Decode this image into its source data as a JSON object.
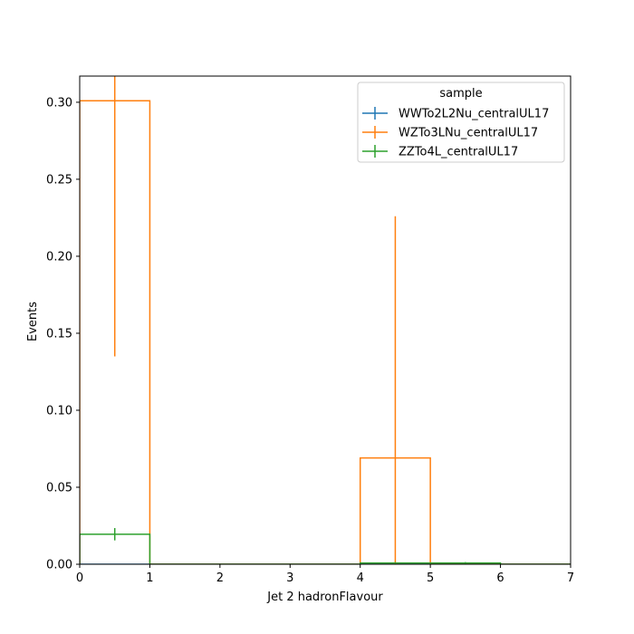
{
  "chart_data": {
    "type": "histogram",
    "xlabel": "Jet 2 hadronFlavour",
    "ylabel": "Events",
    "xlim": [
      0,
      7
    ],
    "ylim": [
      0,
      0.317
    ],
    "x_ticks": [
      "0",
      "1",
      "2",
      "3",
      "4",
      "5",
      "6",
      "7"
    ],
    "y_ticks": [
      "0.00",
      "0.05",
      "0.10",
      "0.15",
      "0.20",
      "0.25",
      "0.30"
    ],
    "bin_edges": [
      0,
      1,
      2,
      3,
      4,
      5,
      6,
      7
    ],
    "legend": {
      "title": "sample",
      "position": "top-right"
    },
    "series": [
      {
        "name": "WWTo2L2Nu_centralUL17",
        "color": "#1f77b4",
        "values": [
          0,
          0,
          0,
          0,
          0,
          0,
          0
        ],
        "errors": [
          0,
          0,
          0,
          0,
          0,
          0,
          0
        ]
      },
      {
        "name": "WZTo3LNu_centralUL17",
        "color": "#ff7f0e",
        "values": [
          0.301,
          0,
          0,
          0,
          0.069,
          0,
          0
        ],
        "errors": [
          0.166,
          0,
          0,
          0,
          0.157,
          0,
          0
        ]
      },
      {
        "name": "ZZTo4L_centralUL17",
        "color": "#2ca02c",
        "values": [
          0.0195,
          0,
          0,
          0,
          0.0008,
          0.0008,
          0
        ],
        "errors": [
          0.004,
          0,
          0,
          0,
          0.0006,
          0.0006,
          0
        ]
      }
    ]
  }
}
